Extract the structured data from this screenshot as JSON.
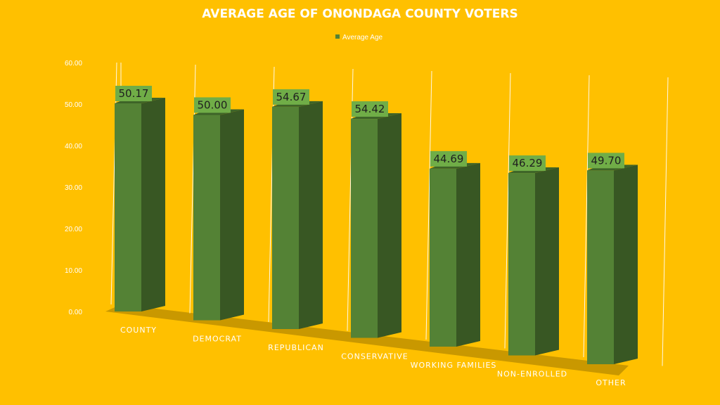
{
  "chart_data": {
    "type": "bar",
    "title": "AVERAGE AGE OF ONONDAGA COUNTY VOTERS",
    "categories": [
      "COUNTY",
      "DEMOCRAT",
      "REPUBLICAN",
      "CONSERVATIVE",
      "WORKING FAMILIES",
      "NON-ENROLLED",
      "OTHER"
    ],
    "series": [
      {
        "name": "Average Age",
        "values": [
          50.17,
          50.0,
          54.67,
          54.42,
          44.69,
          46.29,
          49.7
        ],
        "value_labels": [
          "50.17",
          "50.00",
          "54.67",
          "54.42",
          "44.69",
          "46.29",
          "49.70"
        ]
      }
    ],
    "yticks": [
      "0.00",
      "10.00",
      "20.00",
      "30.00",
      "40.00",
      "50.00",
      "60.00"
    ],
    "ylim": [
      0,
      60
    ],
    "xlabel": "",
    "ylabel": "",
    "legend_position": "top",
    "grid": true,
    "colors": {
      "background": "#FFC000",
      "bar_front": "#548235",
      "bar_side": "#385723",
      "bar_top": "#3E6428",
      "label_box": "#70AD47",
      "floor": "#BF9000",
      "text": "#FFFFFF",
      "label_text": "#1F1F1F"
    }
  }
}
